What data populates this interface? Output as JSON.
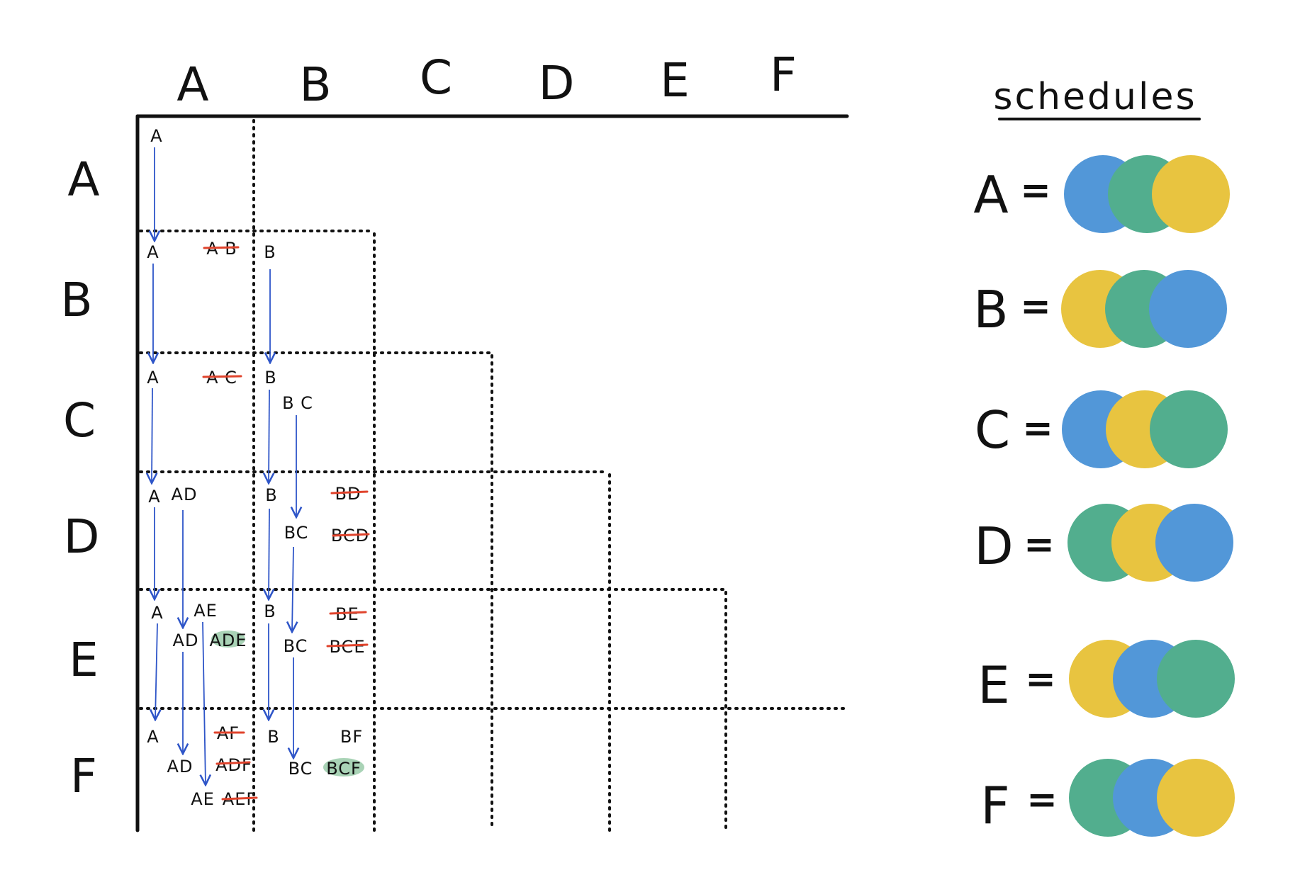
{
  "columns": [
    "A",
    "B",
    "C",
    "D",
    "E",
    "F"
  ],
  "rows": [
    "A",
    "B",
    "C",
    "D",
    "E",
    "F"
  ],
  "schedules_title": "schedules",
  "colors": {
    "blue": "#5297d8",
    "green": "#52ae8e",
    "yellow": "#e8c440",
    "arrow": "#2e55c8",
    "strike": "#e0432c",
    "highlight": "#a9d3b6"
  },
  "schedules": [
    {
      "label": "A",
      "eq": "=",
      "circles": [
        "blue",
        "green",
        "yellow"
      ]
    },
    {
      "label": "B",
      "eq": "=",
      "circles": [
        "yellow",
        "green",
        "blue"
      ]
    },
    {
      "label": "C",
      "eq": "=",
      "circles": [
        "blue",
        "yellow",
        "green"
      ]
    },
    {
      "label": "D",
      "eq": "=",
      "circles": [
        "green",
        "yellow",
        "blue"
      ]
    },
    {
      "label": "E",
      "eq": "=",
      "circles": [
        "yellow",
        "blue",
        "green"
      ]
    },
    {
      "label": "F",
      "eq": "=",
      "circles": [
        "green",
        "blue",
        "yellow"
      ]
    }
  ],
  "cells": {
    "AA": [
      "A"
    ],
    "BA": [
      "A",
      "A B"
    ],
    "BB": [
      "B"
    ],
    "CA": [
      "A",
      "A C"
    ],
    "CB": [
      "B",
      "B C"
    ],
    "DA": [
      "A",
      "AD"
    ],
    "DB": [
      "B",
      "BD",
      "BC",
      "BCD"
    ],
    "EA": [
      "A",
      "AE",
      "AD",
      "ADE"
    ],
    "EB": [
      "B",
      "BE",
      "BC",
      "BCE"
    ],
    "FA": [
      "A",
      "AF",
      "AD",
      "ADF",
      "AE",
      "AEF"
    ],
    "FB": [
      "B",
      "BF",
      "BC",
      "BCF"
    ]
  }
}
